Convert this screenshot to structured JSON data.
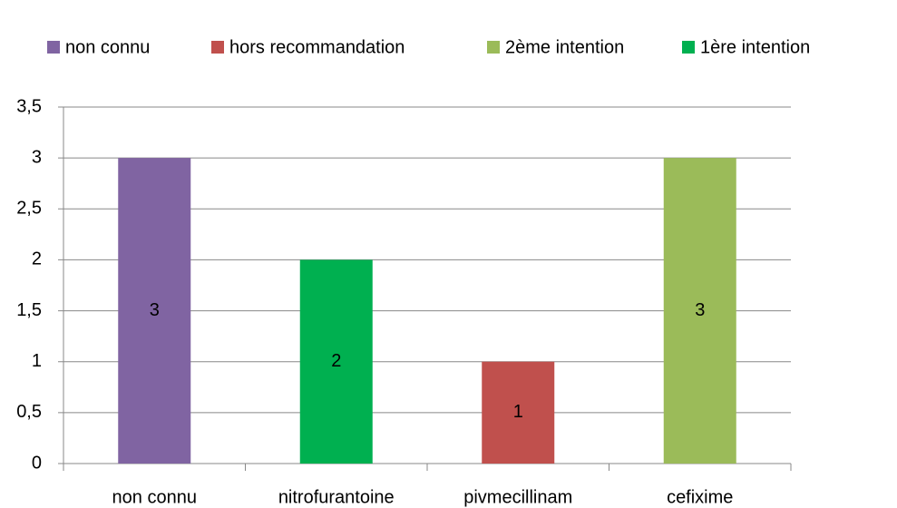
{
  "chart_data": {
    "type": "bar",
    "categories": [
      "non connu",
      "nitrofurantoine",
      "pivmecillinam",
      "cefixime"
    ],
    "series": [
      {
        "name": "non connu",
        "color": "#8064a2",
        "values": [
          3,
          null,
          null,
          null
        ]
      },
      {
        "name": "hors recommandation",
        "color": "#c0504d",
        "values": [
          null,
          null,
          1,
          null
        ]
      },
      {
        "name": "2ème intention",
        "color": "#9bbb59",
        "values": [
          null,
          null,
          null,
          3
        ]
      },
      {
        "name": "1ère intention",
        "color": "#00b050",
        "values": [
          null,
          2,
          null,
          null
        ]
      }
    ],
    "ylim": [
      0,
      3.5
    ],
    "yticks": [
      0,
      {
        "value": 0.5,
        "label": "0,5"
      },
      1,
      {
        "value": 1.5,
        "label": "1,5"
      },
      2,
      {
        "value": 2.5,
        "label": "2,5"
      },
      3,
      {
        "value": 3.5,
        "label": "3,5"
      }
    ],
    "grid": true,
    "legend": "top"
  }
}
